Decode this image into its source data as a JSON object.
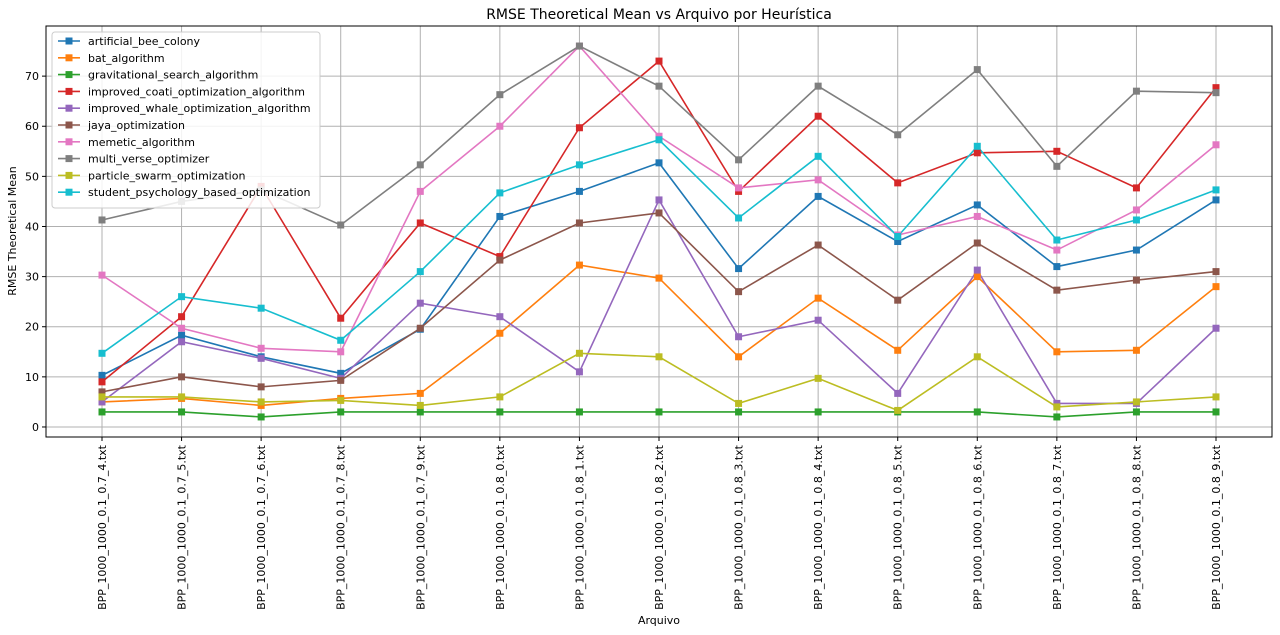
{
  "chart_data": {
    "type": "line",
    "title": "RMSE Theoretical Mean vs Arquivo por Heurística",
    "xlabel": "Arquivo",
    "ylabel": "RMSE Theoretical Mean",
    "ylim": [
      -2,
      80
    ],
    "yticks": [
      0,
      10,
      20,
      30,
      40,
      50,
      60,
      70
    ],
    "grid": true,
    "legend_position": "top-left",
    "marker": "square",
    "categories": [
      "BPP_1000_1000_0.1_0.7_4.txt",
      "BPP_1000_1000_0.1_0.7_5.txt",
      "BPP_1000_1000_0.1_0.7_6.txt",
      "BPP_1000_1000_0.1_0.7_8.txt",
      "BPP_1000_1000_0.1_0.7_9.txt",
      "BPP_1000_1000_0.1_0.8_0.txt",
      "BPP_1000_1000_0.1_0.8_1.txt",
      "BPP_1000_1000_0.1_0.8_2.txt",
      "BPP_1000_1000_0.1_0.8_3.txt",
      "BPP_1000_1000_0.1_0.8_4.txt",
      "BPP_1000_1000_0.1_0.8_5.txt",
      "BPP_1000_1000_0.1_0.8_6.txt",
      "BPP_1000_1000_0.1_0.8_7.txt",
      "BPP_1000_1000_0.1_0.8_8.txt",
      "BPP_1000_1000_0.1_0.8_9.txt"
    ],
    "series": [
      {
        "name": "artificial_bee_colony",
        "color": "#1f77b4",
        "values": [
          10.3,
          18.3,
          14.0,
          10.7,
          19.5,
          42.0,
          47.0,
          52.7,
          31.6,
          46.0,
          37.0,
          44.3,
          32.0,
          35.3,
          45.3
        ]
      },
      {
        "name": "bat_algorithm",
        "color": "#ff7f0e",
        "values": [
          5.0,
          5.7,
          4.3,
          5.7,
          6.7,
          18.7,
          32.3,
          29.7,
          14.0,
          25.7,
          15.3,
          30.0,
          15.0,
          15.3,
          28.0
        ]
      },
      {
        "name": "gravitational_search_algorithm",
        "color": "#2ca02c",
        "values": [
          3.0,
          3.0,
          2.0,
          3.0,
          3.0,
          3.0,
          3.0,
          3.0,
          3.0,
          3.0,
          3.0,
          3.0,
          2.0,
          3.0,
          3.0
        ]
      },
      {
        "name": "improved_coati_optimization_algorithm",
        "color": "#d62728",
        "values": [
          9.0,
          22.0,
          48.0,
          21.7,
          40.7,
          34.0,
          59.7,
          73.0,
          47.0,
          62.0,
          48.7,
          54.7,
          55.0,
          47.7,
          67.7
        ]
      },
      {
        "name": "improved_whale_optimization_algorithm",
        "color": "#9467bd",
        "values": [
          5.0,
          17.0,
          13.7,
          9.7,
          24.7,
          22.0,
          11.0,
          45.3,
          18.0,
          21.3,
          6.7,
          31.3,
          4.7,
          4.7,
          19.7
        ]
      },
      {
        "name": "jaya_optimization",
        "color": "#8c564b",
        "values": [
          7.0,
          10.0,
          8.0,
          9.3,
          19.7,
          33.3,
          40.7,
          42.7,
          27.0,
          36.3,
          25.3,
          36.7,
          27.3,
          29.3,
          31.0
        ]
      },
      {
        "name": "memetic_algorithm",
        "color": "#e377c2",
        "values": [
          30.3,
          19.7,
          15.7,
          15.0,
          47.0,
          60.0,
          76.0,
          58.0,
          47.7,
          49.3,
          38.3,
          42.0,
          35.3,
          43.3,
          56.3
        ]
      },
      {
        "name": "multi_verse_optimizer",
        "color": "#7f7f7f",
        "values": [
          41.3,
          45.0,
          47.3,
          40.3,
          52.3,
          66.3,
          76.0,
          68.0,
          53.3,
          68.0,
          58.3,
          71.3,
          52.0,
          67.0,
          66.7
        ]
      },
      {
        "name": "particle_swarm_optimization",
        "color": "#bcbd22",
        "values": [
          6.0,
          6.0,
          5.0,
          5.3,
          4.3,
          6.0,
          14.7,
          14.0,
          4.7,
          9.7,
          3.3,
          14.0,
          4.0,
          5.0,
          6.0
        ]
      },
      {
        "name": "student_psychology_based_optimization",
        "color": "#17becf",
        "values": [
          14.7,
          26.0,
          23.7,
          17.3,
          31.0,
          46.7,
          52.3,
          57.3,
          41.7,
          54.0,
          38.0,
          56.0,
          37.3,
          41.3,
          47.3
        ]
      }
    ]
  }
}
